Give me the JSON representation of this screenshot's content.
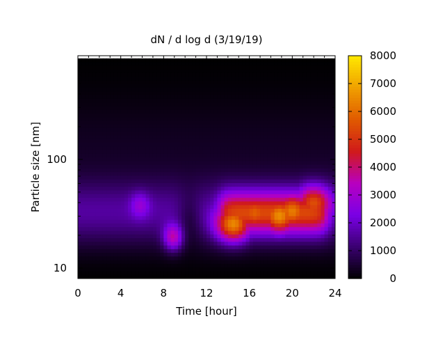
{
  "chart_data": {
    "type": "heatmap",
    "title": "dN / d log d (3/19/19)",
    "xlabel": "Time [hour]",
    "ylabel": "Particle size [nm]",
    "xlim": [
      0,
      24
    ],
    "ylim": [
      8,
      900
    ],
    "yscale": "log",
    "x_ticks": [
      0,
      4,
      8,
      12,
      16,
      20,
      24
    ],
    "x_tick_labels": [
      "0",
      "4",
      "8",
      "12",
      "16",
      "20",
      "24"
    ],
    "y_ticks": [
      10,
      100
    ],
    "y_tick_labels": [
      "10",
      "100"
    ],
    "colorbar": {
      "min": 0,
      "max": 8000,
      "ticks": [
        0,
        1000,
        2000,
        3000,
        4000,
        5000,
        6000,
        7000,
        8000
      ],
      "tick_labels": [
        "0",
        "1000",
        "2000",
        "3000",
        "4000",
        "5000",
        "6000",
        "7000",
        "8000"
      ],
      "colormap": [
        "#000000",
        "#3a0070",
        "#7a00e6",
        "#b800c0",
        "#d01a1a",
        "#e05a00",
        "#f0a000",
        "#ffe800"
      ]
    },
    "data_range": {
      "x": [
        0,
        24
      ],
      "y_top_nm": 850
    },
    "features": [
      {
        "time_h": 5.8,
        "size_nm": 38,
        "peak_value": 2800
      },
      {
        "time_h": 8.9,
        "size_nm": 19,
        "peak_value": 4300
      },
      {
        "time_h": 14.5,
        "size_nm": 25,
        "peak_value": 6600
      },
      {
        "time_h": 16.5,
        "size_nm": 32,
        "peak_value": 5700
      },
      {
        "time_h": 18.8,
        "size_nm": 30,
        "peak_value": 6500
      },
      {
        "time_h": 20.0,
        "size_nm": 33,
        "peak_value": 6200
      },
      {
        "time_h": 22.0,
        "size_nm": 40,
        "peak_value": 5500
      }
    ],
    "grid": false,
    "legend": "none"
  }
}
